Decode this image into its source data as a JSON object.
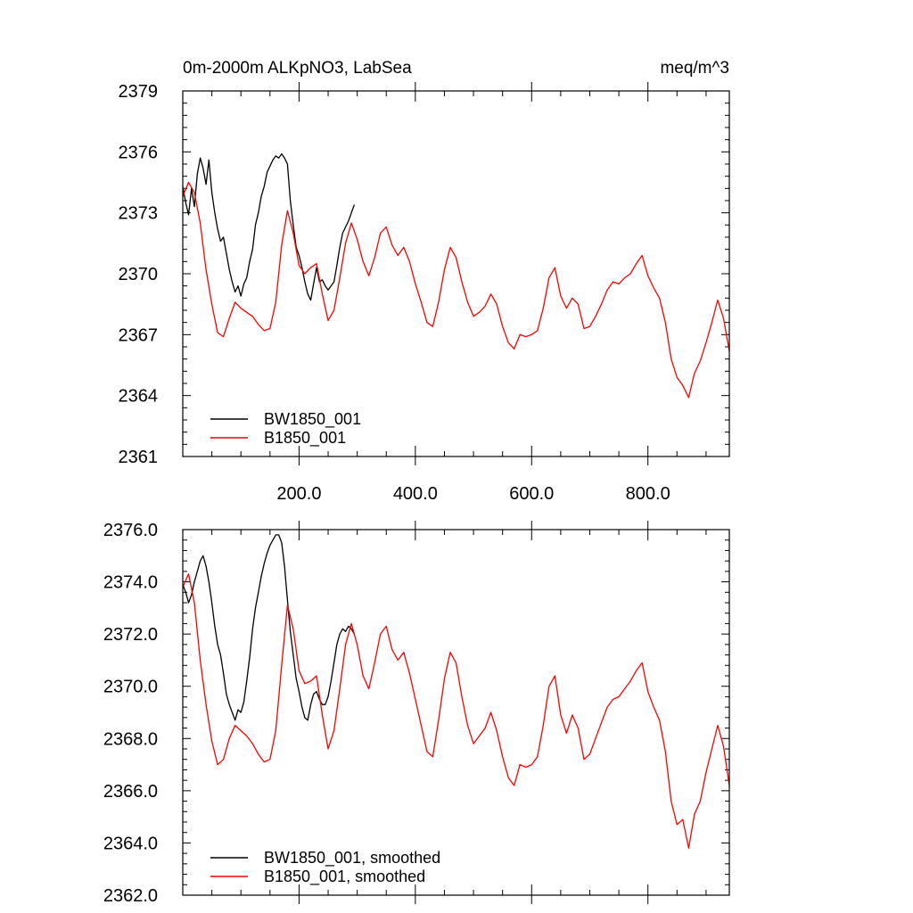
{
  "chart_data": [
    {
      "type": "line",
      "title_left": "0m-2000m ALKpNO3, LabSea",
      "title_right": "meq/m^3",
      "xlim": [
        0,
        940
      ],
      "ylim": [
        2361,
        2379
      ],
      "yticks": [
        2361,
        2364,
        2367,
        2370,
        2373,
        2376,
        2379
      ],
      "ytick_labels": [
        "2361",
        "2364",
        "2367",
        "2370",
        "2373",
        "2376",
        "2379"
      ],
      "xticks": [
        200,
        400,
        600,
        800
      ],
      "xtick_labels": [
        "200.0",
        "400.0",
        "600.0",
        "800.0"
      ],
      "series": [
        {
          "name": "BW1850_001",
          "color": "#000000",
          "x": [
            0,
            5,
            10,
            15,
            20,
            25,
            30,
            35,
            40,
            45,
            50,
            55,
            60,
            65,
            70,
            75,
            80,
            85,
            90,
            95,
            100,
            105,
            110,
            115,
            120,
            125,
            130,
            135,
            140,
            145,
            150,
            155,
            160,
            165,
            170,
            175,
            180,
            185,
            190,
            195,
            200,
            205,
            210,
            215,
            220,
            225,
            230,
            235,
            240,
            245,
            250,
            255,
            260,
            265,
            270,
            275,
            280,
            285,
            290,
            295
          ],
          "values": [
            2374.3,
            2373.5,
            2372.9,
            2374.2,
            2373.3,
            2374.9,
            2375.7,
            2375.2,
            2374.4,
            2375.6,
            2374.0,
            2373.0,
            2372.2,
            2371.6,
            2371.8,
            2371.0,
            2370.2,
            2369.6,
            2369.1,
            2369.4,
            2368.9,
            2369.5,
            2369.8,
            2370.6,
            2371.2,
            2372.4,
            2373.0,
            2373.8,
            2374.3,
            2375.0,
            2375.3,
            2375.6,
            2375.8,
            2375.7,
            2375.9,
            2375.7,
            2375.4,
            2373.6,
            2372.4,
            2371.3,
            2370.9,
            2370.3,
            2369.6,
            2369.0,
            2368.7,
            2369.5,
            2370.3,
            2369.6,
            2369.7,
            2369.4,
            2369.2,
            2369.4,
            2369.6,
            2370.4,
            2371.3,
            2372.0,
            2372.3,
            2372.6,
            2373.0,
            2373.4
          ]
        },
        {
          "name": "B1850_001",
          "color": "#ff0000",
          "x": [
            0,
            10,
            20,
            30,
            40,
            50,
            60,
            70,
            80,
            90,
            100,
            110,
            120,
            130,
            140,
            150,
            160,
            170,
            180,
            190,
            200,
            210,
            220,
            230,
            240,
            250,
            260,
            270,
            280,
            290,
            300,
            310,
            320,
            330,
            340,
            350,
            360,
            370,
            380,
            390,
            400,
            410,
            420,
            430,
            440,
            450,
            460,
            470,
            480,
            490,
            500,
            510,
            520,
            530,
            540,
            550,
            560,
            570,
            580,
            590,
            600,
            610,
            620,
            630,
            640,
            650,
            660,
            670,
            680,
            690,
            700,
            710,
            720,
            730,
            740,
            750,
            760,
            770,
            780,
            790,
            800,
            810,
            820,
            830,
            840,
            850,
            860,
            870,
            880,
            890,
            900,
            910,
            920,
            930,
            940
          ],
          "values": [
            2373.8,
            2374.5,
            2374.0,
            2372.5,
            2370.2,
            2368.5,
            2367.1,
            2366.9,
            2367.8,
            2368.6,
            2368.3,
            2368.1,
            2367.9,
            2367.5,
            2367.2,
            2367.3,
            2368.6,
            2371.4,
            2373.1,
            2372.0,
            2370.4,
            2370.0,
            2370.3,
            2370.5,
            2369.0,
            2367.7,
            2368.2,
            2369.8,
            2371.5,
            2372.5,
            2371.7,
            2370.6,
            2369.9,
            2370.8,
            2372.0,
            2372.3,
            2371.4,
            2370.9,
            2371.3,
            2370.6,
            2369.5,
            2368.6,
            2367.6,
            2367.4,
            2368.6,
            2370.2,
            2371.3,
            2370.8,
            2369.6,
            2368.6,
            2367.9,
            2368.1,
            2368.4,
            2369.0,
            2368.5,
            2367.4,
            2366.6,
            2366.3,
            2367.0,
            2366.9,
            2367.0,
            2367.2,
            2368.3,
            2369.8,
            2370.3,
            2368.9,
            2368.3,
            2368.8,
            2368.5,
            2367.3,
            2367.4,
            2367.9,
            2368.5,
            2369.2,
            2369.6,
            2369.5,
            2369.8,
            2370.0,
            2370.5,
            2370.9,
            2369.9,
            2369.3,
            2368.8,
            2367.6,
            2365.8,
            2364.9,
            2364.5,
            2363.9,
            2365.1,
            2365.7,
            2366.6,
            2367.6,
            2368.7,
            2367.8,
            2366.2
          ]
        }
      ],
      "legend": {
        "entries": [
          "BW1850_001",
          "B1850_001"
        ],
        "location": "lower-left"
      }
    },
    {
      "type": "line",
      "xlim": [
        0,
        940
      ],
      "ylim": [
        2362,
        2376
      ],
      "yticks": [
        2362,
        2364,
        2366,
        2368,
        2370,
        2372,
        2374,
        2376
      ],
      "ytick_labels": [
        "2362.0",
        "2364.0",
        "2366.0",
        "2368.0",
        "2370.0",
        "2372.0",
        "2374.0",
        "2376.0"
      ],
      "series": [
        {
          "name": "BW1850_001, smoothed",
          "color": "#000000",
          "x": [
            0,
            5,
            10,
            15,
            20,
            25,
            30,
            35,
            40,
            45,
            50,
            55,
            60,
            65,
            70,
            75,
            80,
            85,
            90,
            95,
            100,
            105,
            110,
            115,
            120,
            125,
            130,
            135,
            140,
            145,
            150,
            155,
            160,
            165,
            170,
            175,
            180,
            185,
            190,
            195,
            200,
            205,
            210,
            215,
            220,
            225,
            230,
            235,
            240,
            245,
            250,
            255,
            260,
            265,
            270,
            275,
            280,
            285,
            290,
            295
          ],
          "values": [
            2373.9,
            2373.6,
            2373.2,
            2373.5,
            2374.0,
            2374.4,
            2374.8,
            2375.0,
            2374.6,
            2374.0,
            2373.2,
            2372.3,
            2371.6,
            2371.2,
            2370.5,
            2369.7,
            2369.3,
            2369.0,
            2368.7,
            2369.1,
            2369.0,
            2369.4,
            2370.2,
            2371.1,
            2372.2,
            2373.0,
            2373.6,
            2374.2,
            2374.7,
            2375.1,
            2375.4,
            2375.6,
            2375.8,
            2375.8,
            2375.5,
            2374.6,
            2373.3,
            2372.1,
            2371.2,
            2370.3,
            2369.8,
            2369.2,
            2368.8,
            2368.7,
            2369.3,
            2369.7,
            2369.8,
            2369.5,
            2369.3,
            2369.3,
            2369.6,
            2370.2,
            2370.9,
            2371.6,
            2372.0,
            2372.2,
            2372.1,
            2372.3,
            2372.2,
            2372.0
          ]
        },
        {
          "name": "B1850_001, smoothed",
          "color": "#ff0000",
          "x": [
            0,
            10,
            20,
            30,
            40,
            50,
            60,
            70,
            80,
            90,
            100,
            110,
            120,
            130,
            140,
            150,
            160,
            170,
            180,
            190,
            200,
            210,
            220,
            230,
            240,
            250,
            260,
            270,
            280,
            290,
            300,
            310,
            320,
            330,
            340,
            350,
            360,
            370,
            380,
            390,
            400,
            410,
            420,
            430,
            440,
            450,
            460,
            470,
            480,
            490,
            500,
            510,
            520,
            530,
            540,
            550,
            560,
            570,
            580,
            590,
            600,
            610,
            620,
            630,
            640,
            650,
            660,
            670,
            680,
            690,
            700,
            710,
            720,
            730,
            740,
            750,
            760,
            770,
            780,
            790,
            800,
            810,
            820,
            830,
            840,
            850,
            860,
            870,
            880,
            890,
            900,
            910,
            920,
            930,
            940
          ],
          "values": [
            2373.8,
            2374.3,
            2373.2,
            2371.0,
            2369.3,
            2367.9,
            2367.0,
            2367.2,
            2368.0,
            2368.5,
            2368.3,
            2368.1,
            2367.8,
            2367.4,
            2367.1,
            2367.2,
            2368.3,
            2370.8,
            2373.1,
            2372.2,
            2370.6,
            2370.1,
            2370.2,
            2370.4,
            2368.9,
            2367.6,
            2368.3,
            2369.9,
            2371.6,
            2372.4,
            2371.6,
            2370.4,
            2369.9,
            2370.9,
            2372.0,
            2372.3,
            2371.4,
            2371.0,
            2371.3,
            2370.5,
            2369.5,
            2368.5,
            2367.5,
            2367.3,
            2368.7,
            2370.3,
            2371.3,
            2370.9,
            2369.6,
            2368.5,
            2367.8,
            2368.1,
            2368.4,
            2369.0,
            2368.3,
            2367.3,
            2366.5,
            2366.2,
            2367.0,
            2366.9,
            2367.0,
            2367.3,
            2368.5,
            2370.0,
            2370.4,
            2368.9,
            2368.2,
            2368.9,
            2368.4,
            2367.2,
            2367.4,
            2368.0,
            2368.6,
            2369.2,
            2369.5,
            2369.6,
            2369.9,
            2370.2,
            2370.6,
            2370.9,
            2369.8,
            2369.2,
            2368.7,
            2367.5,
            2365.6,
            2364.7,
            2364.9,
            2363.8,
            2365.1,
            2365.6,
            2366.7,
            2367.6,
            2368.5,
            2367.7,
            2366.2
          ]
        }
      ],
      "legend": {
        "entries": [
          "BW1850_001, smoothed",
          "B1850_001, smoothed"
        ],
        "location": "lower-left"
      }
    }
  ]
}
